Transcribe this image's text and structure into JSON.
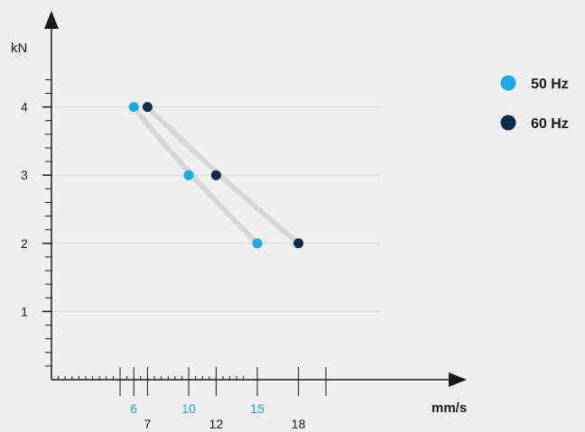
{
  "chart_data": {
    "type": "scatter",
    "xlabel": "mm/s",
    "ylabel": "kN",
    "xlim": [
      0,
      24
    ],
    "ylim": [
      0,
      5.3
    ],
    "grid": true,
    "legend_position": "right",
    "y_ticks": [
      1,
      2,
      3,
      4
    ],
    "series": [
      {
        "name": "50 Hz",
        "color": "#1ba9e8",
        "x": [
          6,
          10,
          15
        ],
        "y": [
          4,
          3,
          2
        ],
        "x_ticks": [
          6,
          10,
          15
        ]
      },
      {
        "name": "60 Hz",
        "color": "#0f2a4a",
        "x": [
          7,
          12,
          18
        ],
        "y": [
          4,
          3,
          2
        ],
        "x_ticks": [
          7,
          12,
          18
        ]
      }
    ]
  }
}
